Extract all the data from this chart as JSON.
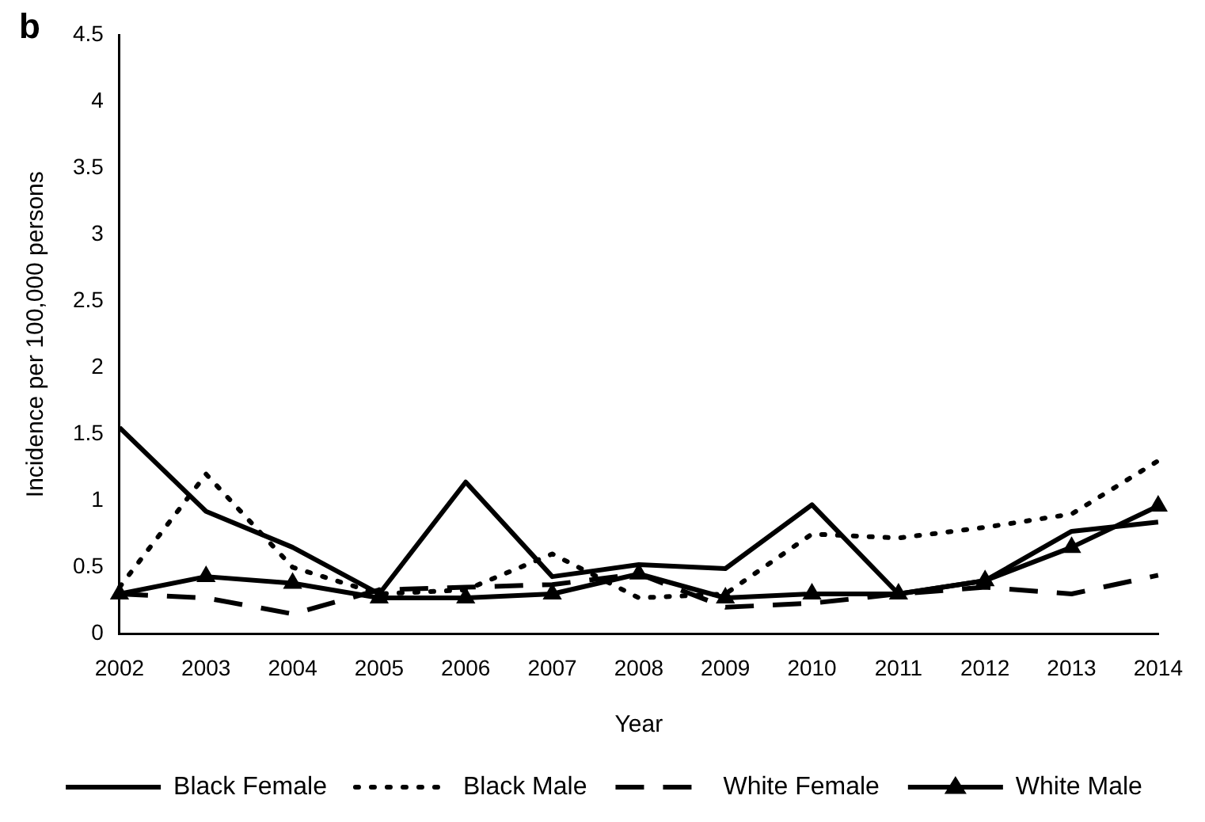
{
  "chart_data": {
    "type": "line",
    "xlabel": "Year",
    "ylabel": "Incidence per 100,000 persons",
    "annotations": [
      "b"
    ],
    "categories": [
      "2002",
      "2003",
      "2004",
      "2005",
      "2006",
      "2007",
      "2008",
      "2009",
      "2010",
      "2011",
      "2012",
      "2013",
      "2014"
    ],
    "ylim": [
      0,
      4.5
    ],
    "yticks": [
      0,
      0.5,
      1,
      1.5,
      2,
      2.5,
      3,
      3.5,
      4,
      4.5
    ],
    "grid": false,
    "legend": "bottom",
    "series": [
      {
        "name": "Black Female",
        "color": "#000000",
        "line_style": "solid",
        "marker": "none",
        "values": [
          1.55,
          0.92,
          0.65,
          0.3,
          1.14,
          0.43,
          0.52,
          0.49,
          0.97,
          0.3,
          0.4,
          0.77,
          0.84
        ]
      },
      {
        "name": "Black Male",
        "color": "#000000",
        "line_style": "dotted",
        "marker": "none",
        "values": [
          0.35,
          1.2,
          0.5,
          0.3,
          0.33,
          0.6,
          0.27,
          0.3,
          0.75,
          0.72,
          0.8,
          0.9,
          1.3
        ]
      },
      {
        "name": "White Female",
        "color": "#000000",
        "line_style": "dashed",
        "marker": "none",
        "values": [
          0.3,
          0.27,
          0.15,
          0.33,
          0.35,
          0.37,
          0.45,
          0.2,
          0.23,
          0.3,
          0.35,
          0.3,
          0.44
        ]
      },
      {
        "name": "White Male",
        "color": "#000000",
        "line_style": "solid",
        "marker": "triangle",
        "values": [
          0.3,
          0.43,
          0.38,
          0.27,
          0.27,
          0.3,
          0.45,
          0.27,
          0.3,
          0.3,
          0.4,
          0.65,
          0.96
        ]
      }
    ]
  }
}
